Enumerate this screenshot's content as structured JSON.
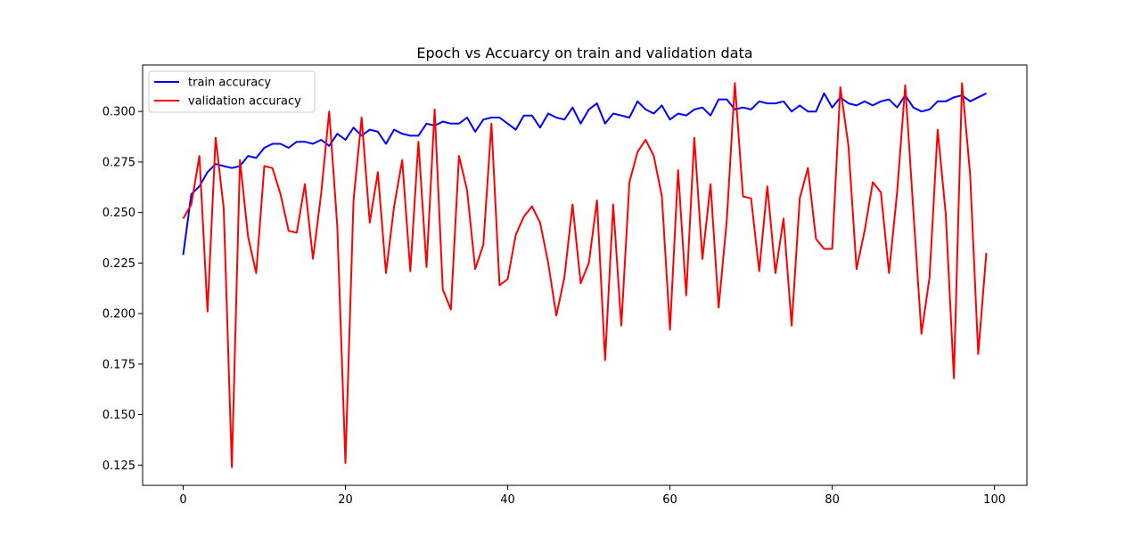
{
  "chart_data": {
    "type": "line",
    "title": "Epoch vs Accuarcy on train and validation data",
    "xlabel": "",
    "ylabel": "",
    "xlim": [
      -5,
      104
    ],
    "ylim": [
      0.115,
      0.323
    ],
    "xticks": [
      0,
      20,
      40,
      60,
      80,
      100
    ],
    "xtick_labels": [
      "0",
      "20",
      "40",
      "60",
      "80",
      "100"
    ],
    "yticks": [
      0.125,
      0.15,
      0.175,
      0.2,
      0.225,
      0.25,
      0.275,
      0.3
    ],
    "ytick_labels": [
      "0.125",
      "0.150",
      "0.175",
      "0.200",
      "0.225",
      "0.250",
      "0.275",
      "0.300"
    ],
    "grid": false,
    "legend_position": "top-left",
    "x": [
      0,
      1,
      2,
      3,
      4,
      5,
      6,
      7,
      8,
      9,
      10,
      11,
      12,
      13,
      14,
      15,
      16,
      17,
      18,
      19,
      20,
      21,
      22,
      23,
      24,
      25,
      26,
      27,
      28,
      29,
      30,
      31,
      32,
      33,
      34,
      35,
      36,
      37,
      38,
      39,
      40,
      41,
      42,
      43,
      44,
      45,
      46,
      47,
      48,
      49,
      50,
      51,
      52,
      53,
      54,
      55,
      56,
      57,
      58,
      59,
      60,
      61,
      62,
      63,
      64,
      65,
      66,
      67,
      68,
      69,
      70,
      71,
      72,
      73,
      74,
      75,
      76,
      77,
      78,
      79,
      80,
      81,
      82,
      83,
      84,
      85,
      86,
      87,
      88,
      89,
      90,
      91,
      92,
      93,
      94,
      95,
      96,
      97,
      98,
      99
    ],
    "series": [
      {
        "name": "train accuracy",
        "color": "#0000ff",
        "values": [
          0.229,
          0.259,
          0.263,
          0.27,
          0.274,
          0.273,
          0.272,
          0.273,
          0.278,
          0.277,
          0.282,
          0.284,
          0.284,
          0.282,
          0.285,
          0.285,
          0.284,
          0.286,
          0.283,
          0.289,
          0.286,
          0.292,
          0.288,
          0.291,
          0.29,
          0.284,
          0.291,
          0.289,
          0.288,
          0.288,
          0.294,
          0.293,
          0.295,
          0.294,
          0.294,
          0.297,
          0.29,
          0.296,
          0.297,
          0.297,
          0.294,
          0.291,
          0.298,
          0.298,
          0.292,
          0.299,
          0.297,
          0.296,
          0.302,
          0.294,
          0.301,
          0.304,
          0.294,
          0.299,
          0.298,
          0.297,
          0.305,
          0.301,
          0.299,
          0.303,
          0.296,
          0.299,
          0.298,
          0.301,
          0.302,
          0.298,
          0.306,
          0.306,
          0.301,
          0.302,
          0.301,
          0.305,
          0.304,
          0.304,
          0.305,
          0.3,
          0.303,
          0.3,
          0.3,
          0.309,
          0.302,
          0.307,
          0.304,
          0.303,
          0.305,
          0.303,
          0.305,
          0.306,
          0.302,
          0.308,
          0.302,
          0.3,
          0.301,
          0.305,
          0.305,
          0.307,
          0.308,
          0.305,
          0.307,
          0.309
        ]
      },
      {
        "name": "validation accuracy",
        "color": "#ff0000",
        "values": [
          0.247,
          0.254,
          0.278,
          0.201,
          0.287,
          0.252,
          0.124,
          0.276,
          0.238,
          0.22,
          0.273,
          0.272,
          0.259,
          0.241,
          0.24,
          0.264,
          0.227,
          0.259,
          0.3,
          0.243,
          0.126,
          0.256,
          0.297,
          0.245,
          0.27,
          0.22,
          0.253,
          0.276,
          0.221,
          0.285,
          0.223,
          0.301,
          0.212,
          0.202,
          0.278,
          0.261,
          0.222,
          0.234,
          0.294,
          0.214,
          0.217,
          0.239,
          0.248,
          0.253,
          0.245,
          0.225,
          0.199,
          0.218,
          0.254,
          0.215,
          0.225,
          0.256,
          0.177,
          0.254,
          0.194,
          0.265,
          0.28,
          0.286,
          0.278,
          0.258,
          0.192,
          0.271,
          0.209,
          0.287,
          0.227,
          0.264,
          0.203,
          0.246,
          0.314,
          0.258,
          0.257,
          0.221,
          0.263,
          0.22,
          0.247,
          0.194,
          0.257,
          0.272,
          0.237,
          0.232,
          0.232,
          0.312,
          0.283,
          0.222,
          0.241,
          0.265,
          0.26,
          0.22,
          0.26,
          0.313,
          0.251,
          0.19,
          0.218,
          0.291,
          0.249,
          0.168,
          0.314,
          0.269,
          0.18,
          0.23
        ]
      }
    ]
  }
}
